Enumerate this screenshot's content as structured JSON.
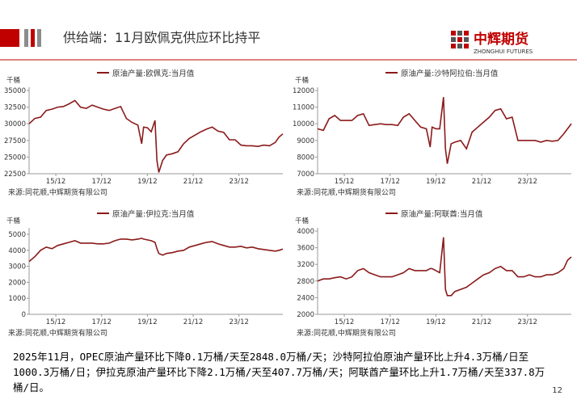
{
  "header": {
    "title": "供给端：11月欧佩克供应环比持平",
    "logo_cn": "中辉期货",
    "logo_en": "ZHONGHUI FUTURES"
  },
  "body_text": "2025年11月，OPEC原油产量环比下降0.1万桶/天至2848.0万桶/天；沙特阿拉伯原油产量环比上升4.3万桶/日至1000.3万桶/日；伊拉克原油产量环比下降2.1万桶/天至407.7万桶/天；阿联酋产量环比上升1.7万桶/天至337.8万桶/日。",
  "page_number": "12",
  "chart_data": [
    {
      "type": "line",
      "unit": "千桶",
      "source": "来源:同花顺,中辉期货有限公司",
      "x": [
        "14/10",
        "15/01",
        "15/04",
        "15/07",
        "15/10",
        "16/01",
        "16/04",
        "16/07",
        "16/10",
        "17/01",
        "17/04",
        "17/07",
        "17/10",
        "18/01",
        "18/04",
        "18/07",
        "18/10",
        "19/01",
        "19/04",
        "19/07",
        "19/09",
        "19/10",
        "19/12",
        "20/02",
        "20/04",
        "20/05",
        "20/06",
        "20/08",
        "20/10",
        "21/01",
        "21/04",
        "21/07",
        "21/10",
        "22/01",
        "22/04",
        "22/07",
        "22/10",
        "23/01",
        "23/04",
        "23/07",
        "23/10",
        "24/01",
        "24/04",
        "24/07",
        "24/10",
        "25/01",
        "25/04",
        "25/07",
        "25/09",
        "25/11"
      ],
      "xlim": [
        "14/10",
        "25/11"
      ],
      "xticks": [
        "15/12",
        "17/12",
        "19/12",
        "21/12",
        "23/12"
      ],
      "ylim": [
        22500,
        35000
      ],
      "yticks": [
        22500,
        25000,
        27500,
        30000,
        32500,
        35000
      ],
      "series": [
        {
          "name": "原油产量:欧佩克:当月值",
          "color": "#8b1a1a",
          "values": [
            30000,
            30800,
            31000,
            32000,
            32200,
            32500,
            32600,
            33000,
            33500,
            32500,
            32300,
            32800,
            32500,
            32200,
            32000,
            32300,
            32600,
            30800,
            30200,
            29800,
            27000,
            29500,
            29400,
            28800,
            30500,
            24500,
            22700,
            24500,
            25300,
            25500,
            25800,
            27000,
            27800,
            28300,
            28800,
            29200,
            29500,
            28900,
            28700,
            27600,
            27600,
            26800,
            26700,
            26700,
            26600,
            26800,
            26700,
            27200,
            28000,
            28480
          ]
        }
      ]
    },
    {
      "type": "line",
      "unit": "千桶",
      "source": "来源:同花顺,中辉期货有限公司",
      "x": [
        "14/10",
        "15/01",
        "15/04",
        "15/07",
        "15/10",
        "16/01",
        "16/04",
        "16/07",
        "16/10",
        "17/01",
        "17/04",
        "17/07",
        "17/10",
        "18/01",
        "18/04",
        "18/07",
        "18/10",
        "19/01",
        "19/04",
        "19/07",
        "19/09",
        "19/10",
        "19/12",
        "20/02",
        "20/04",
        "20/05",
        "20/06",
        "20/08",
        "20/10",
        "21/01",
        "21/04",
        "21/07",
        "21/10",
        "22/01",
        "22/04",
        "22/07",
        "22/10",
        "23/01",
        "23/04",
        "23/07",
        "23/10",
        "24/01",
        "24/04",
        "24/07",
        "24/10",
        "25/01",
        "25/04",
        "25/07",
        "25/09",
        "25/11"
      ],
      "xlim": [
        "14/10",
        "25/11"
      ],
      "xticks": [
        "15/12",
        "17/12",
        "19/12",
        "21/12",
        "23/12"
      ],
      "ylim": [
        7000,
        12000
      ],
      "yticks": [
        7000,
        8000,
        9000,
        10000,
        11000,
        12000
      ],
      "series": [
        {
          "name": "原油产量:沙特阿拉伯:当月值",
          "color": "#8b1a1a",
          "values": [
            9700,
            9600,
            10300,
            10500,
            10200,
            10200,
            10200,
            10500,
            10600,
            9900,
            9950,
            10000,
            9950,
            9950,
            9900,
            10400,
            10600,
            10200,
            9800,
            9700,
            8600,
            9800,
            9700,
            9700,
            11600,
            8500,
            7600,
            8800,
            8900,
            9000,
            8500,
            9500,
            9800,
            10100,
            10400,
            10800,
            10900,
            10300,
            10400,
            9000,
            9000,
            9000,
            9000,
            8900,
            9000,
            8950,
            9000,
            9400,
            9700,
            10003
          ]
        }
      ]
    },
    {
      "type": "line",
      "unit": "千桶",
      "source": "来源:同花顺,中辉期货有限公司",
      "x": [
        "14/10",
        "15/01",
        "15/04",
        "15/07",
        "15/10",
        "16/01",
        "16/04",
        "16/07",
        "16/10",
        "17/01",
        "17/04",
        "17/07",
        "17/10",
        "18/01",
        "18/04",
        "18/07",
        "18/10",
        "19/01",
        "19/04",
        "19/07",
        "19/09",
        "19/10",
        "19/12",
        "20/02",
        "20/04",
        "20/05",
        "20/06",
        "20/08",
        "20/10",
        "21/01",
        "21/04",
        "21/07",
        "21/10",
        "22/01",
        "22/04",
        "22/07",
        "22/10",
        "23/01",
        "23/04",
        "23/07",
        "23/10",
        "24/01",
        "24/04",
        "24/07",
        "24/10",
        "25/01",
        "25/04",
        "25/07",
        "25/09",
        "25/11"
      ],
      "xlim": [
        "14/10",
        "25/11"
      ],
      "xticks": [
        "15/12",
        "17/12",
        "19/12",
        "21/12",
        "23/12"
      ],
      "ylim": [
        0,
        5200
      ],
      "yticks": [
        0,
        1000,
        2000,
        3000,
        4000,
        5000
      ],
      "series": [
        {
          "name": "原油产量:伊拉克:当月值",
          "color": "#8b1a1a",
          "values": [
            3300,
            3600,
            4000,
            4200,
            4100,
            4300,
            4400,
            4500,
            4600,
            4450,
            4450,
            4450,
            4400,
            4400,
            4450,
            4600,
            4700,
            4700,
            4650,
            4700,
            4750,
            4700,
            4650,
            4600,
            4500,
            4100,
            3800,
            3700,
            3800,
            3850,
            3950,
            4000,
            4200,
            4300,
            4400,
            4500,
            4550,
            4400,
            4300,
            4200,
            4200,
            4250,
            4150,
            4200,
            4100,
            4050,
            4000,
            3950,
            4000,
            4077
          ]
        }
      ]
    },
    {
      "type": "line",
      "unit": "千桶",
      "source": "来源:同花顺,中辉期货有限公司",
      "x": [
        "14/10",
        "15/01",
        "15/04",
        "15/07",
        "15/10",
        "16/01",
        "16/04",
        "16/07",
        "16/10",
        "17/01",
        "17/04",
        "17/07",
        "17/10",
        "18/01",
        "18/04",
        "18/07",
        "18/10",
        "19/01",
        "19/04",
        "19/07",
        "19/09",
        "19/10",
        "19/12",
        "20/02",
        "20/04",
        "20/05",
        "20/06",
        "20/08",
        "20/10",
        "21/01",
        "21/04",
        "21/07",
        "21/10",
        "22/01",
        "22/04",
        "22/07",
        "22/10",
        "23/01",
        "23/04",
        "23/07",
        "23/10",
        "24/01",
        "24/04",
        "24/07",
        "24/10",
        "25/01",
        "25/04",
        "25/07",
        "25/09",
        "25/11"
      ],
      "xlim": [
        "14/10",
        "25/11"
      ],
      "xticks": [
        "15/12",
        "17/12",
        "19/12",
        "21/12",
        "23/12"
      ],
      "ylim": [
        2000,
        4000
      ],
      "yticks": [
        2000,
        2400,
        2800,
        3200,
        3600,
        4000
      ],
      "series": [
        {
          "name": "原油产量:阿联酋:当月值",
          "color": "#8b1a1a",
          "values": [
            2800,
            2850,
            2850,
            2880,
            2900,
            2850,
            2900,
            3050,
            3100,
            3000,
            2950,
            2900,
            2900,
            2900,
            2950,
            3000,
            3100,
            3050,
            3050,
            3050,
            3100,
            3100,
            3050,
            3000,
            3850,
            2600,
            2450,
            2450,
            2550,
            2600,
            2650,
            2750,
            2850,
            2950,
            3000,
            3100,
            3150,
            3050,
            3050,
            2900,
            2900,
            2950,
            2900,
            2900,
            2950,
            2950,
            3000,
            3100,
            3300,
            3378
          ]
        }
      ]
    }
  ]
}
